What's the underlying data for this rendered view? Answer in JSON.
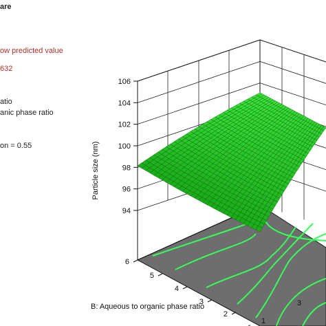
{
  "panel": {
    "heading": "are",
    "predicted_label": "ow predicted value",
    "predicted_value": "632",
    "factor_a": "atio",
    "factor_b": "anic phase ratio",
    "actual_factor": "on = 0.55"
  },
  "colors": {
    "surface_fill": "#2fd42f",
    "surface_line": "#0a5a0a",
    "floor": "#6e6e6e",
    "contour": "#37ff5a",
    "red_text": "#b0302a"
  },
  "chart_data": {
    "type": "surface",
    "title": "",
    "zlabel": "Particle size (nm)",
    "ylabel": "B: Aqueous to organic phase ratio",
    "zlim": [
      94,
      106
    ],
    "z_ticks": [
      "94",
      "96",
      "98",
      "100",
      "102",
      "104",
      "106"
    ],
    "y_ticks": [
      "1",
      "2",
      "3",
      "4",
      "5",
      "6"
    ],
    "x_ticks": [
      "1",
      "3"
    ],
    "surface_left_edge_value": 98,
    "surface_center_value": 99.5,
    "surface_right_value": 100.5,
    "grid": true
  }
}
